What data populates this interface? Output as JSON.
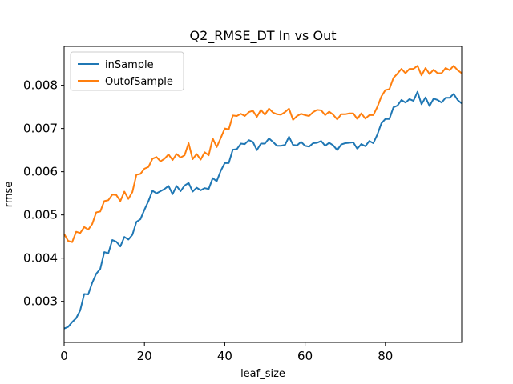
{
  "chart_data": {
    "type": "line",
    "title": "Q2_RMSE_DT In vs Out",
    "xlabel": "leaf_size",
    "ylabel": "rmse",
    "xlim": [
      0,
      99
    ],
    "ylim": [
      0.00205,
      0.0089
    ],
    "xticks": [
      0,
      20,
      40,
      60,
      80
    ],
    "xtick_labels": [
      "0",
      "20",
      "40",
      "60",
      "80"
    ],
    "yticks": [
      0.003,
      0.004,
      0.005,
      0.006,
      0.007,
      0.008
    ],
    "ytick_labels": [
      "0.003",
      "0.004",
      "0.005",
      "0.006",
      "0.007",
      "0.008"
    ],
    "grid": false,
    "legend_position": "top-left",
    "series": [
      {
        "name": "inSample",
        "color": "#1f77b4",
        "x": [
          0,
          1,
          2,
          3,
          4,
          5,
          6,
          7,
          8,
          9,
          10,
          11,
          12,
          13,
          14,
          15,
          16,
          17,
          18,
          19,
          20,
          21,
          22,
          23,
          24,
          25,
          26,
          27,
          28,
          29,
          30,
          31,
          32,
          33,
          34,
          35,
          36,
          37,
          38,
          39,
          40,
          41,
          42,
          43,
          44,
          45,
          46,
          47,
          48,
          49,
          50,
          51,
          52,
          53,
          54,
          55,
          56,
          57,
          58,
          59,
          60,
          61,
          62,
          63,
          64,
          65,
          66,
          67,
          68,
          69,
          70,
          71,
          72,
          73,
          74,
          75,
          76,
          77,
          78,
          79,
          80,
          81,
          82,
          83,
          84,
          85,
          86,
          87,
          88,
          89,
          90,
          91,
          92,
          93,
          94,
          95,
          96,
          97,
          98,
          99
        ],
        "values": [
          0.00237,
          0.00241,
          0.00252,
          0.00261,
          0.00279,
          0.00317,
          0.00316,
          0.00343,
          0.00364,
          0.00375,
          0.00414,
          0.00411,
          0.00442,
          0.00438,
          0.00427,
          0.00449,
          0.00443,
          0.00454,
          0.00484,
          0.0049,
          0.00512,
          0.00532,
          0.00556,
          0.0055,
          0.00555,
          0.0056,
          0.00567,
          0.00548,
          0.00567,
          0.00555,
          0.00568,
          0.00574,
          0.00554,
          0.00563,
          0.00557,
          0.00562,
          0.0056,
          0.00585,
          0.00578,
          0.00602,
          0.0062,
          0.0062,
          0.00651,
          0.00652,
          0.00665,
          0.00664,
          0.00673,
          0.00669,
          0.0065,
          0.00665,
          0.00665,
          0.00677,
          0.00669,
          0.0066,
          0.0066,
          0.00662,
          0.00681,
          0.00662,
          0.00661,
          0.00669,
          0.0066,
          0.00658,
          0.00666,
          0.00667,
          0.00671,
          0.0066,
          0.00667,
          0.00661,
          0.0065,
          0.00663,
          0.00666,
          0.00667,
          0.00668,
          0.00653,
          0.00664,
          0.00659,
          0.00671,
          0.00666,
          0.00686,
          0.00712,
          0.00722,
          0.00722,
          0.00749,
          0.00753,
          0.00766,
          0.0076,
          0.00768,
          0.00764,
          0.00785,
          0.00756,
          0.00772,
          0.00752,
          0.00769,
          0.00766,
          0.0076,
          0.00771,
          0.00771,
          0.0078,
          0.00766,
          0.00758
        ]
      },
      {
        "name": "OutofSample",
        "color": "#ff7f0e",
        "x": [
          0,
          1,
          2,
          3,
          4,
          5,
          6,
          7,
          8,
          9,
          10,
          11,
          12,
          13,
          14,
          15,
          16,
          17,
          18,
          19,
          20,
          21,
          22,
          23,
          24,
          25,
          26,
          27,
          28,
          29,
          30,
          31,
          32,
          33,
          34,
          35,
          36,
          37,
          38,
          39,
          40,
          41,
          42,
          43,
          44,
          45,
          46,
          47,
          48,
          49,
          50,
          51,
          52,
          53,
          54,
          55,
          56,
          57,
          58,
          59,
          60,
          61,
          62,
          63,
          64,
          65,
          66,
          67,
          68,
          69,
          70,
          71,
          72,
          73,
          74,
          75,
          76,
          77,
          78,
          79,
          80,
          81,
          82,
          83,
          84,
          85,
          86,
          87,
          88,
          89,
          90,
          91,
          92,
          93,
          94,
          95,
          96,
          97,
          98,
          99
        ],
        "values": [
          0.00456,
          0.0044,
          0.00437,
          0.00461,
          0.00458,
          0.00472,
          0.00466,
          0.00479,
          0.00506,
          0.00508,
          0.00532,
          0.00534,
          0.00547,
          0.00546,
          0.00532,
          0.00554,
          0.00537,
          0.00553,
          0.00593,
          0.00595,
          0.00607,
          0.00611,
          0.0063,
          0.00634,
          0.00624,
          0.0063,
          0.0064,
          0.00627,
          0.00641,
          0.00633,
          0.00638,
          0.00666,
          0.00629,
          0.00641,
          0.00628,
          0.00645,
          0.00638,
          0.00677,
          0.00657,
          0.00678,
          0.007,
          0.00698,
          0.0073,
          0.00729,
          0.00734,
          0.00729,
          0.00738,
          0.00741,
          0.00727,
          0.00743,
          0.00732,
          0.00746,
          0.00737,
          0.00733,
          0.00732,
          0.00738,
          0.00746,
          0.0072,
          0.00729,
          0.00734,
          0.00731,
          0.00729,
          0.00738,
          0.00743,
          0.00742,
          0.00731,
          0.00739,
          0.00732,
          0.00721,
          0.00733,
          0.00733,
          0.00735,
          0.00735,
          0.00722,
          0.00735,
          0.00723,
          0.00731,
          0.00731,
          0.0075,
          0.00774,
          0.00789,
          0.00791,
          0.00817,
          0.00827,
          0.00838,
          0.00828,
          0.00838,
          0.00838,
          0.00845,
          0.00823,
          0.0084,
          0.00826,
          0.00836,
          0.00828,
          0.00828,
          0.0084,
          0.00835,
          0.00845,
          0.00835,
          0.00828
        ]
      }
    ]
  }
}
